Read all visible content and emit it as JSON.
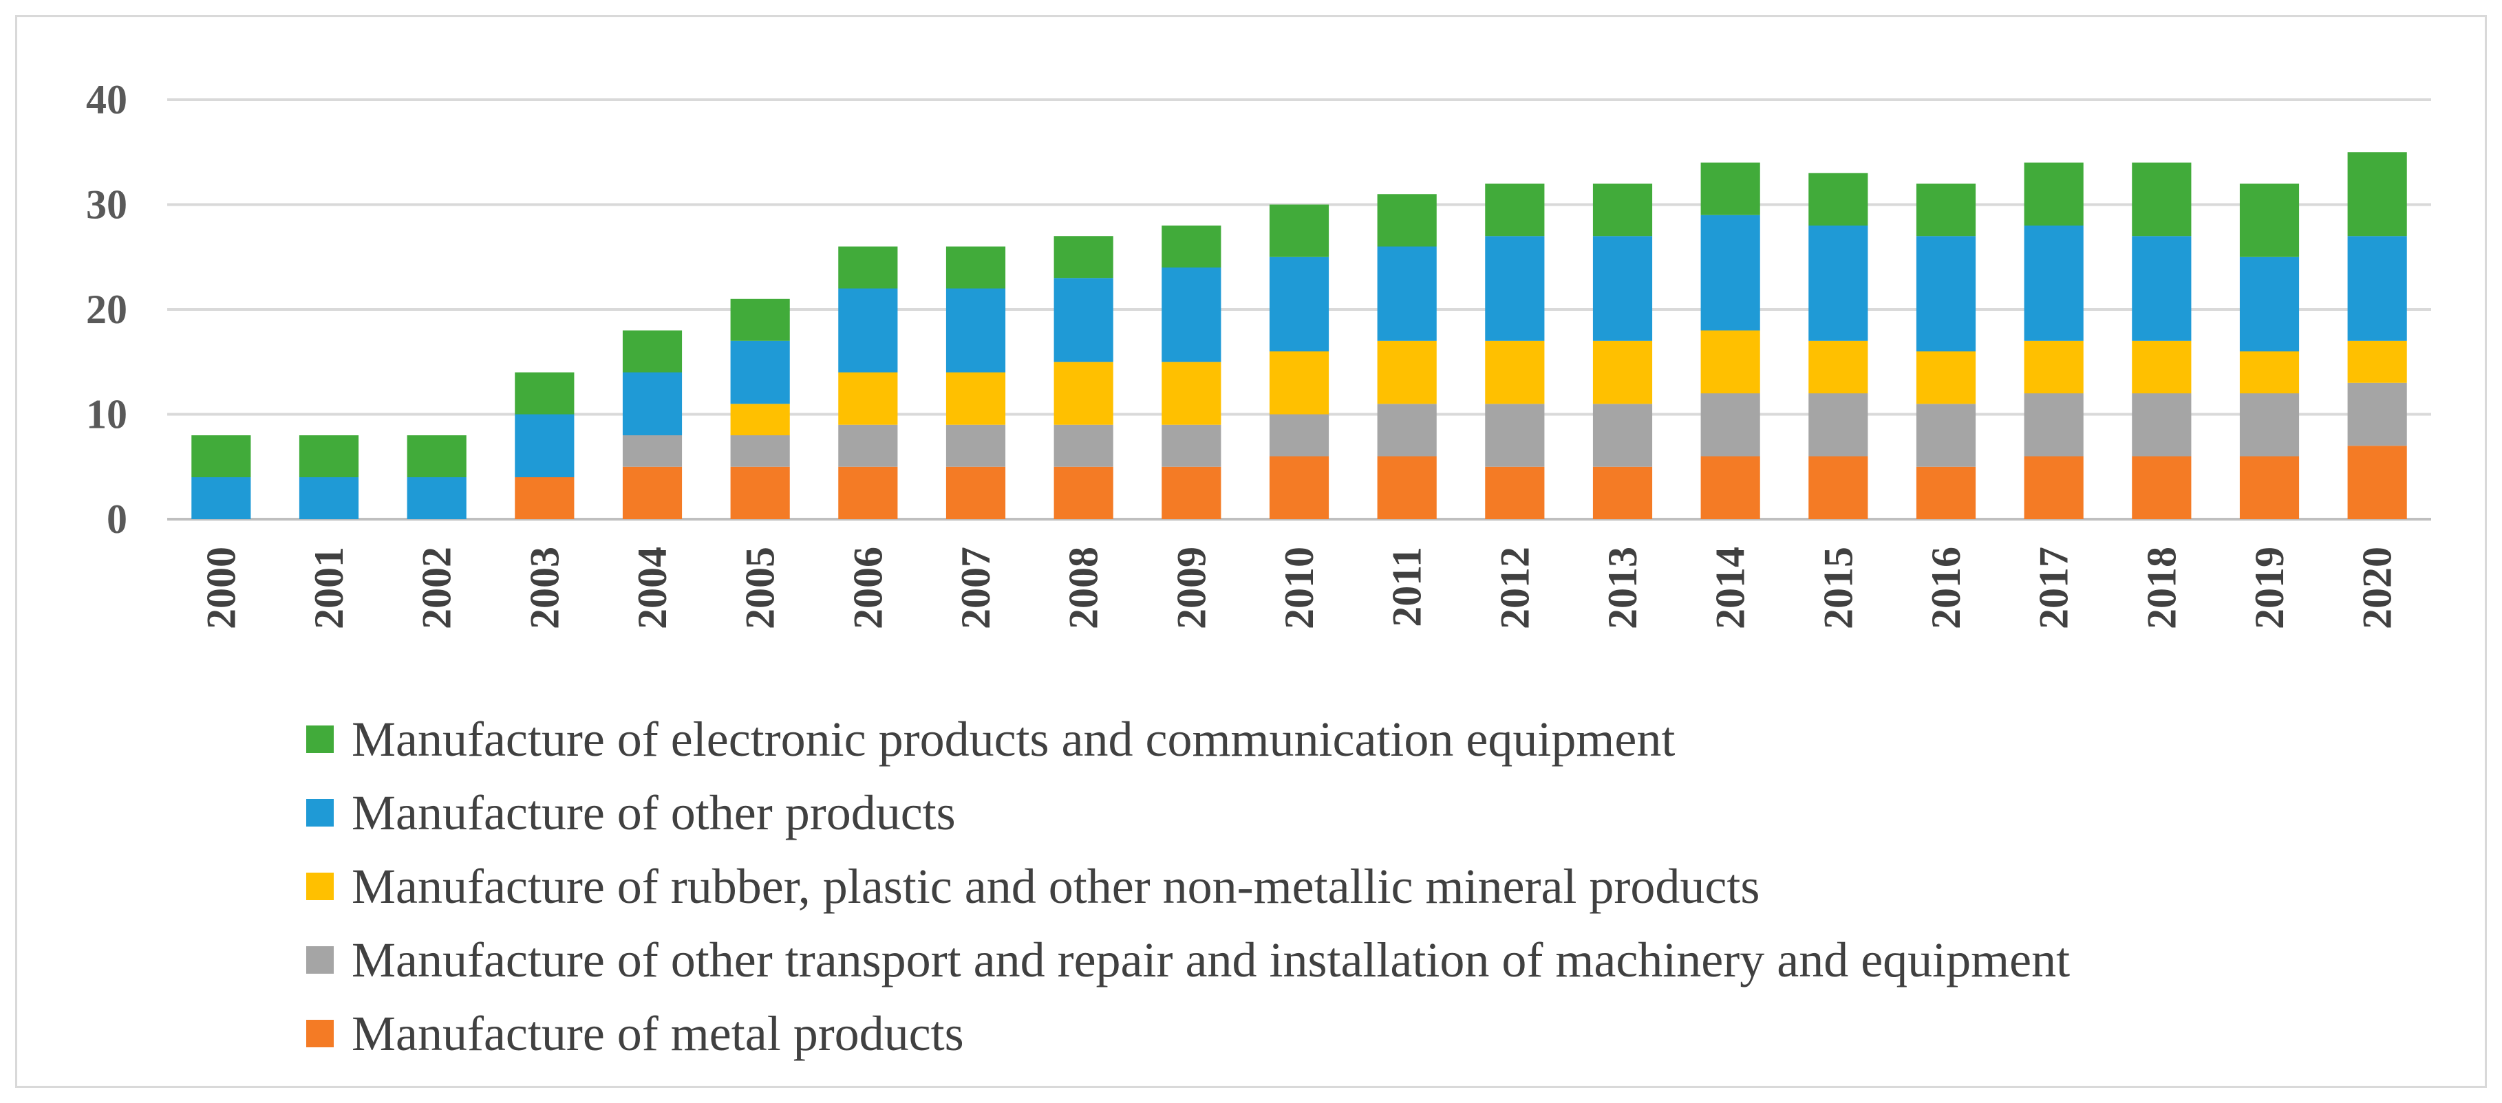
{
  "chart_data": {
    "type": "bar",
    "stacked": true,
    "title": "",
    "xlabel": "",
    "ylabel": "",
    "ylim": [
      0,
      40
    ],
    "yticks": [
      "0",
      "10",
      "20",
      "30",
      "40"
    ],
    "grid": true,
    "legend_position": "bottom",
    "categories": [
      "2000",
      "2001",
      "2002",
      "2003",
      "2004",
      "2005",
      "2006",
      "2007",
      "2008",
      "2009",
      "2010",
      "2011",
      "2012",
      "2013",
      "2014",
      "2015",
      "2016",
      "2017",
      "2018",
      "2019",
      "2020"
    ],
    "series": [
      {
        "name": "Manufacture of metal products",
        "color": "#f47b25",
        "values": [
          0,
          0,
          0,
          4,
          5,
          5,
          5,
          5,
          5,
          5,
          6,
          6,
          5,
          5,
          6,
          6,
          5,
          6,
          6,
          6,
          7
        ]
      },
      {
        "name": "Manufacture of other transport  and repair and installation of machinery and equipment",
        "color": "#a5a5a5",
        "values": [
          0,
          0,
          0,
          0,
          3,
          3,
          4,
          4,
          4,
          4,
          4,
          5,
          6,
          6,
          6,
          6,
          6,
          6,
          6,
          6,
          6
        ]
      },
      {
        "name": "Manufacture of rubber, plastic and other non-metallic mineral products",
        "color": "#ffc000",
        "values": [
          0,
          0,
          0,
          0,
          0,
          3,
          5,
          5,
          6,
          6,
          6,
          6,
          6,
          6,
          6,
          5,
          5,
          5,
          5,
          4,
          4
        ]
      },
      {
        "name": "Manufacture of other products",
        "color": "#1f9ad6",
        "values": [
          4,
          4,
          4,
          6,
          6,
          6,
          8,
          8,
          8,
          9,
          9,
          9,
          10,
          10,
          11,
          11,
          11,
          11,
          10,
          9,
          10
        ]
      },
      {
        "name": "Manufacture of electronic products and communication equipment",
        "color": "#41ab3a",
        "values": [
          4,
          4,
          4,
          4,
          4,
          4,
          4,
          4,
          4,
          4,
          5,
          5,
          5,
          5,
          5,
          5,
          5,
          6,
          7,
          7,
          8
        ]
      }
    ],
    "legend_order": [
      4,
      3,
      2,
      1,
      0
    ]
  }
}
